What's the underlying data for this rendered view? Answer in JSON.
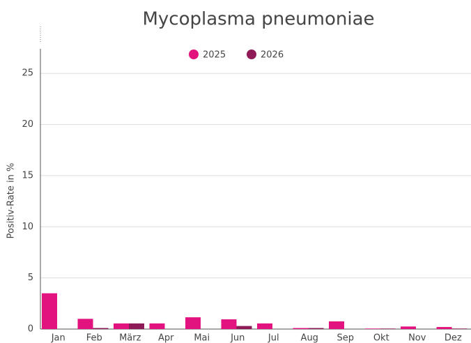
{
  "chart_data": {
    "type": "bar",
    "title": "Mycoplasma pneumoniae",
    "y_label": "Positiv-Rate in %",
    "categories": [
      "Jan",
      "Feb",
      "März",
      "Apr",
      "Mai",
      "Jun",
      "Jul",
      "Aug",
      "Sep",
      "Okt",
      "Nov",
      "Dez"
    ],
    "series": [
      {
        "name": "2025",
        "color": "#e2127f",
        "values": [
          3.5,
          1.0,
          0.55,
          0.55,
          1.15,
          0.95,
          0.55,
          0.1,
          0.75,
          0.05,
          0.25,
          0.2
        ]
      },
      {
        "name": "2026",
        "color": "#8e1a58",
        "values": [
          0,
          0.1,
          0.55,
          0,
          0,
          0.3,
          0,
          0.1,
          0,
          0.05,
          0,
          0.05
        ]
      }
    ],
    "ylim": [
      0,
      27.4
    ],
    "yticks": [
      0,
      5,
      10,
      15,
      20,
      25
    ],
    "grid": true,
    "legend": "top"
  }
}
